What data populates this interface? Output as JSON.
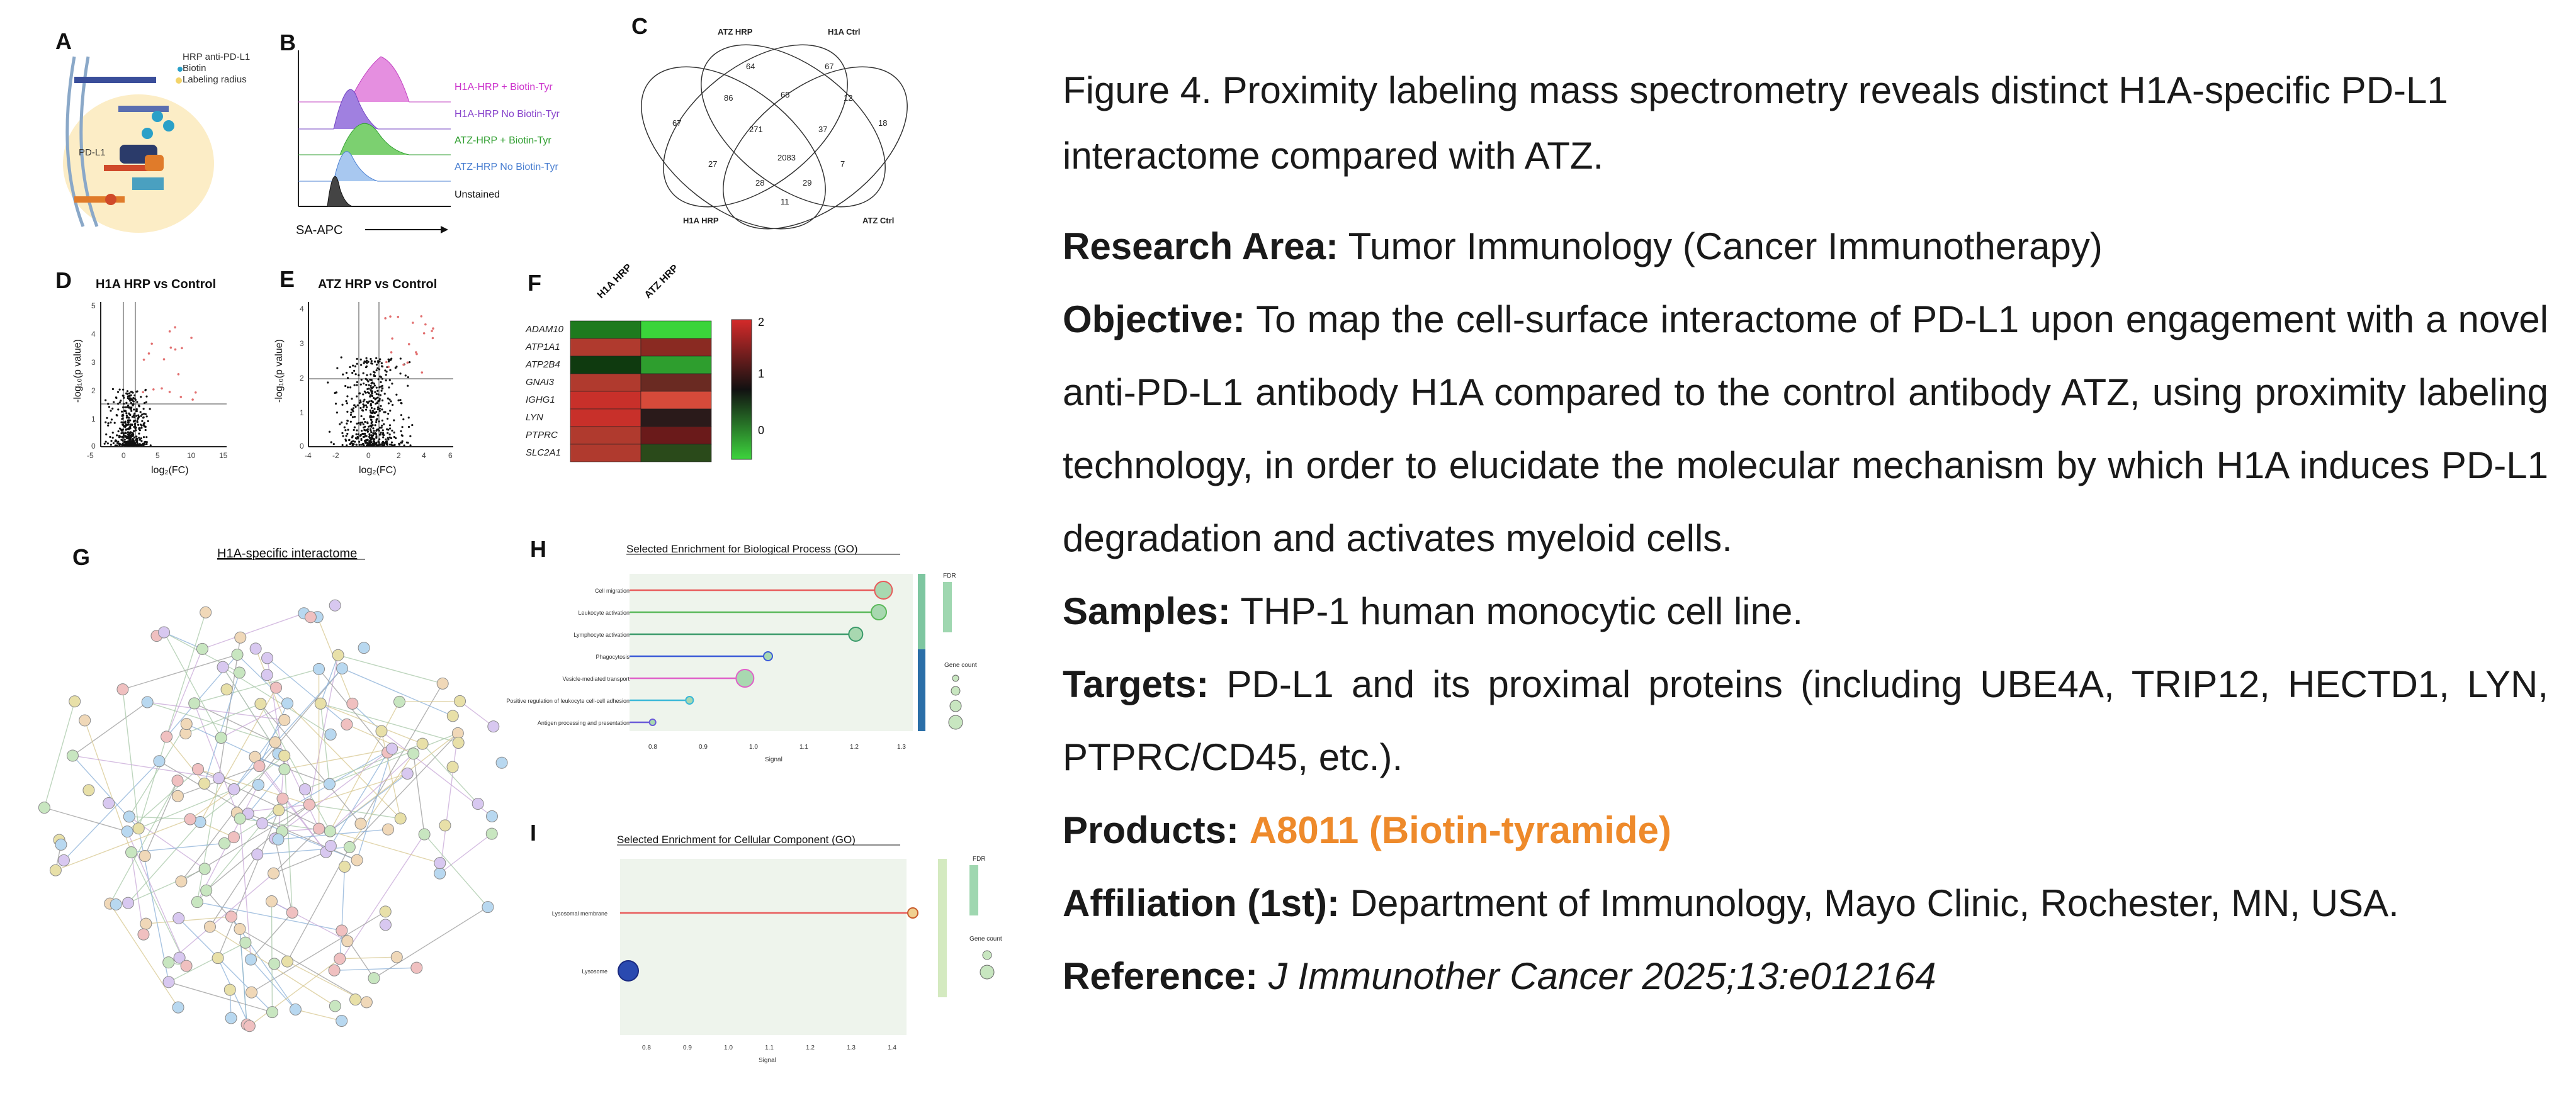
{
  "figure": {
    "panels": {
      "A": "A",
      "B": "B",
      "C": "C",
      "D": "D",
      "E": "E",
      "F": "F",
      "G": "G",
      "H": "H",
      "I": "I"
    },
    "panelA": {
      "legend": [
        "HRP anti-PD-L1",
        "Biotin",
        "Labeling radius"
      ],
      "pdl1_label": "PD-L1"
    },
    "panelB": {
      "legend": [
        "H1A-HRP + Biotin-Tyr",
        "H1A-HRP No Biotin-Tyr",
        "ATZ-HRP + Biotin-Tyr",
        "ATZ-HRP No Biotin-Tyr",
        "Unstained"
      ],
      "legend_colors": [
        "#cc33cc",
        "#8844cc",
        "#2e9e2e",
        "#4a7fd1",
        "#111111"
      ],
      "xlabel": "SA-APC"
    },
    "panelC": {
      "sets": [
        "ATZ HRP",
        "H1A Ctrl",
        "H1A HRP",
        "ATZ Ctrl"
      ],
      "counts": [
        "64",
        "67",
        "86",
        "65",
        "12",
        "18",
        "67",
        "271",
        "37",
        "27",
        "2083",
        "7",
        "28",
        "11",
        "29"
      ]
    },
    "panelD": {
      "title": "H1A HRP vs Control",
      "xlabel": "log₂(FC)",
      "ylabel": "-log₁₀(p value)",
      "xticks": [
        "-5",
        "0",
        "5",
        "10",
        "15"
      ],
      "yticks": [
        "0",
        "1",
        "2",
        "3",
        "4",
        "5"
      ]
    },
    "panelE": {
      "title": "ATZ HRP vs Control",
      "xlabel": "log₂(FC)",
      "ylabel": "-log₁₀(p value)",
      "xticks": [
        "-4",
        "-2",
        "0",
        "2",
        "4",
        "6"
      ],
      "yticks": [
        "0",
        "1",
        "2",
        "3",
        "4"
      ]
    },
    "panelF": {
      "columns": [
        "H1A HRP",
        "ATZ HRP"
      ],
      "genes": [
        "ADAM10",
        "ATP1A1",
        "ATP2B4",
        "GNAI3",
        "IGHG1",
        "LYN",
        "PTPRC",
        "SLC2A1"
      ],
      "scale": [
        "2",
        "1",
        "0"
      ]
    },
    "panelG": {
      "title": "H1A-specific interactome"
    },
    "panelH": {
      "title": "Selected Enrichment for Biological Process (GO)",
      "terms": [
        "Cell migration",
        "Leukocyte activation",
        "Lymphocyte activation",
        "Phagocytosis",
        "Vesicle-mediated transport",
        "Positive regulation of leukocyte cell-cell adhesion",
        "Antigen processing and presentation"
      ],
      "xlabel": "Signal",
      "xticks": [
        "0.8",
        "0.9",
        "1.0",
        "1.1",
        "1.2",
        "1.3"
      ],
      "legend_fdr": "FDR",
      "legend_gene": "Gene count"
    },
    "panelI": {
      "title": "Selected Enrichment for Cellular Component (GO)",
      "terms": [
        "Lysosomal membrane",
        "Lysosome"
      ],
      "xlabel": "Signal",
      "xticks": [
        "0.8",
        "0.9",
        "1.0",
        "1.1",
        "1.2",
        "1.3",
        "1.4"
      ],
      "legend_fdr": "FDR",
      "legend_gene": "Gene count"
    }
  },
  "text": {
    "title": "Figure 4. Proximity labeling mass spectrometry reveals distinct H1A-specific PD-L1 interactome compared with ATZ.",
    "research_area_label": "Research Area:",
    "research_area": "Tumor Immunology (Cancer Immunotherapy)",
    "objective_label": "Objective:",
    "objective": "To map the cell-surface interactome of PD-L1 upon engagement with a novel anti-PD-L1 antibody H1A compared to the control antibody ATZ, using proximity labeling technology, in order to elucidate the molecular mechanism by which H1A induces PD-L1 degradation and activates myeloid cells.",
    "samples_label": "Samples:",
    "samples": "THP-1 human monocytic cell line.",
    "targets_label": "Targets:",
    "targets": "PD-L1 and its proximal proteins (including UBE4A, TRIP12, HECTD1, LYN, PTPRC/CD45, etc.).",
    "products_label": "Products:",
    "products": "A8011 (Biotin-tyramide)",
    "affiliation_label": "Affiliation (1st):",
    "affiliation": "Department of Immunology, Mayo Clinic, Rochester, MN, USA.",
    "reference_label": "Reference:",
    "reference": "J Immunother Cancer 2025;13:e012164",
    "colors": {
      "product": "#ee8a2b",
      "text": "#1a1a1a"
    }
  }
}
